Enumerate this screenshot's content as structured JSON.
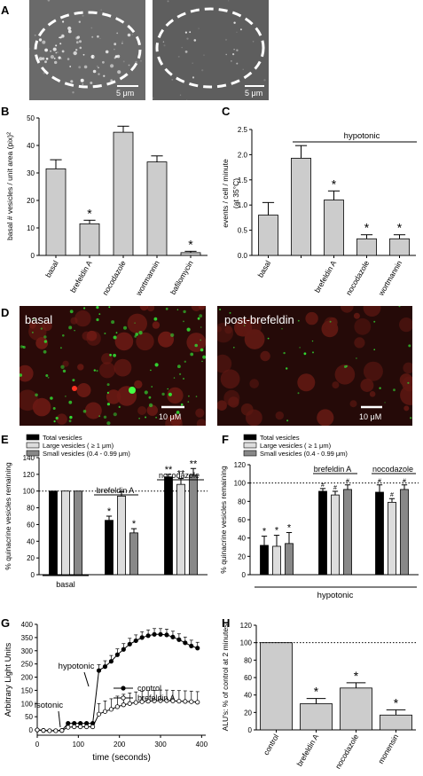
{
  "panels": {
    "A": {
      "letter": "A",
      "scalebar_left": "5 μm",
      "scalebar_right": "5 μm"
    },
    "B": {
      "letter": "B"
    },
    "C": {
      "letter": "C"
    },
    "D": {
      "letter": "D",
      "label_left": "basal",
      "label_right": "post-brefeldin",
      "scalebar_left": "10 μM",
      "scalebar_right": "10 μM"
    },
    "E": {
      "letter": "E"
    },
    "F": {
      "letter": "F"
    },
    "G": {
      "letter": "G"
    },
    "H": {
      "letter": "H"
    }
  },
  "colors": {
    "bar_gray": "#cccccc",
    "black": "#000000",
    "light": "#dddddd",
    "dark": "#888888",
    "fluor_red": "#5a1410",
    "fluor_green": "#33dd33"
  },
  "chart_data": [
    {
      "id": "B",
      "type": "bar",
      "ylabel": "basal # vesicles / unit area (pix)²",
      "categories": [
        "basal",
        "brefeldin A",
        "nocodazole",
        "wortmannin",
        "bafilomycin"
      ],
      "values": [
        31.5,
        11.5,
        44.8,
        34,
        1
      ],
      "errors": [
        3.3,
        1.3,
        2.2,
        2.2,
        0.5
      ],
      "significance": [
        "",
        "*",
        "",
        "",
        "*"
      ],
      "ylim": [
        0,
        50
      ],
      "yticks": [
        "0",
        "10",
        "20",
        "30",
        "40",
        "50"
      ]
    },
    {
      "id": "C",
      "type": "bar",
      "ylabel": "events / cell / minute",
      "ylabel2": "(at 35°C)",
      "annotation": "hypotonic",
      "categories": [
        "basal",
        "",
        "brefeldin A",
        "nocodazole",
        "wortmannin"
      ],
      "values": [
        0.8,
        1.93,
        1.1,
        0.33,
        0.33
      ],
      "errors": [
        0.25,
        0.25,
        0.18,
        0.08,
        0.08
      ],
      "significance": [
        "",
        "",
        "*",
        "*",
        "*"
      ],
      "ylim": [
        0,
        2.5
      ],
      "yticks": [
        "0.0",
        "0.5",
        "1.0",
        "1.5",
        "2.0",
        "2.5"
      ]
    },
    {
      "id": "E",
      "type": "bar",
      "ylabel": "% quinacrine vesicles remaining",
      "legend": [
        "Total vesicles",
        "Large vesicles ( ≥ 1 μm)",
        "Small vesicles (0.4 - 0.99 μm)"
      ],
      "groups": [
        "basal",
        "brefeldin A",
        "nocodazole"
      ],
      "series": [
        {
          "values": [
            100,
            65,
            117
          ],
          "errors": [
            0,
            5,
            3
          ],
          "sig": [
            "",
            "*",
            "**"
          ]
        },
        {
          "values": [
            100,
            94,
            108
          ],
          "errors": [
            0,
            5,
            7
          ],
          "sig": [
            "",
            "",
            "**"
          ]
        },
        {
          "values": [
            100,
            50,
            119
          ],
          "errors": [
            0,
            5,
            8
          ],
          "sig": [
            "",
            "*",
            "**"
          ]
        }
      ],
      "ylim": [
        0,
        140
      ],
      "yticks": [
        "0",
        "20",
        "40",
        "60",
        "80",
        "100",
        "120",
        "140"
      ],
      "reference_line": 100
    },
    {
      "id": "F",
      "type": "bar",
      "ylabel": "% quinacrine vesicles remaining",
      "legend": [
        "Total vesicles",
        "Large vesicles ( ≥ 1 μm)",
        "Small vesicles (0.4 - 0.99 μm)"
      ],
      "groups": [
        "",
        "brefeldin A",
        "nocodazole"
      ],
      "footer": "hypotonic",
      "series": [
        {
          "values": [
            32,
            91,
            90
          ],
          "errors": [
            10,
            3,
            8
          ],
          "sig": [
            "*",
            "#",
            "#"
          ]
        },
        {
          "values": [
            31,
            87,
            79
          ],
          "errors": [
            12,
            4,
            4
          ],
          "sig": [
            "*",
            "#",
            "#"
          ]
        },
        {
          "values": [
            34,
            93,
            93
          ],
          "errors": [
            12,
            5,
            5
          ],
          "sig": [
            "*",
            "#",
            "#"
          ]
        }
      ],
      "ylim": [
        0,
        120
      ],
      "yticks": [
        "0",
        "20",
        "40",
        "60",
        "80",
        "100",
        "120"
      ],
      "reference_line": 100
    },
    {
      "id": "G",
      "type": "line",
      "ylabel": "Arbitrary Light Units",
      "xlabel": "time (seconds)",
      "annotations": [
        "hypotonic",
        "isotonic"
      ],
      "series": [
        {
          "name": "control",
          "x": [
            0,
            15,
            30,
            45,
            60,
            75,
            90,
            105,
            120,
            135,
            150,
            165,
            180,
            195,
            210,
            225,
            240,
            255,
            270,
            285,
            300,
            315,
            330,
            345,
            360,
            375,
            390
          ],
          "y": [
            0,
            -2,
            -3,
            -3,
            -2,
            25,
            25,
            25,
            25,
            25,
            225,
            240,
            260,
            285,
            305,
            325,
            338,
            350,
            357,
            362,
            362,
            360,
            352,
            342,
            330,
            318,
            310
          ],
          "err": 22
        },
        {
          "name": "brefeldin A",
          "x": [
            0,
            15,
            30,
            45,
            60,
            75,
            90,
            105,
            120,
            135,
            150,
            165,
            180,
            195,
            210,
            225,
            240,
            255,
            270,
            285,
            300,
            315,
            330,
            345,
            360,
            375,
            390
          ],
          "y": [
            0,
            -2,
            -3,
            -3,
            -2,
            10,
            12,
            12,
            12,
            12,
            60,
            70,
            78,
            88,
            95,
            100,
            104,
            107,
            109,
            110,
            111,
            111,
            110,
            109,
            108,
            107,
            105
          ],
          "err": 40
        }
      ],
      "xlim": [
        0,
        410
      ],
      "ylim": [
        -20,
        400
      ],
      "xticks": [
        "0",
        "100",
        "200",
        "300",
        "400"
      ],
      "yticks": [
        "0",
        "50",
        "100",
        "150",
        "200",
        "250",
        "300",
        "350",
        "400"
      ]
    },
    {
      "id": "H",
      "type": "bar",
      "ylabel": "ALU's: % of control at 2 minutes",
      "categories": [
        "control",
        "brefeldin A",
        "nocodazole",
        "monensin"
      ],
      "values": [
        100,
        30,
        48,
        17
      ],
      "errors": [
        0,
        6,
        6,
        6
      ],
      "significance": [
        "",
        "*",
        "*",
        "*"
      ],
      "ylim": [
        0,
        120
      ],
      "yticks": [
        "0",
        "20",
        "40",
        "60",
        "80",
        "100",
        "120"
      ],
      "reference_line": 100
    }
  ]
}
